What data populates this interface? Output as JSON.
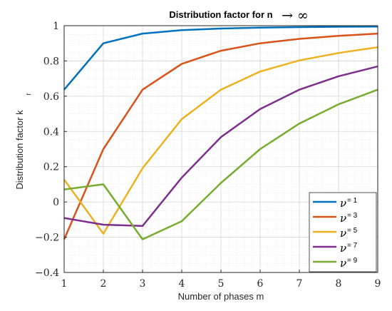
{
  "chart_data": {
    "type": "line",
    "title": "Distribution factor for n",
    "title_symbol": "→ ∞",
    "xlabel": "Number of phases m",
    "ylabel": "Distribution factor k",
    "ylabel_subscript": "r",
    "xlim": [
      1,
      9
    ],
    "ylim": [
      -0.4,
      1
    ],
    "xticks": [
      1,
      2,
      3,
      4,
      5,
      6,
      7,
      8,
      9
    ],
    "yticks": [
      -0.4,
      -0.2,
      0,
      0.2,
      0.4,
      0.6,
      0.8,
      1
    ],
    "ytick_labels": [
      "−0.4",
      "−0.2",
      "0",
      "0.2",
      "0.4",
      "0.6",
      "0.8",
      "1"
    ],
    "grid": true,
    "minor_grid": true,
    "legend_position": "bottom-right",
    "legend_symbol": "ν",
    "x": [
      1,
      2,
      3,
      4,
      5,
      6,
      7,
      8,
      9
    ],
    "series": [
      {
        "name": "= 1",
        "color": "#0072BD",
        "values": [
          0.637,
          0.9,
          0.955,
          0.975,
          0.984,
          0.989,
          0.992,
          0.994,
          0.995
        ]
      },
      {
        "name": "= 3",
        "color": "#D95319",
        "values": [
          -0.212,
          0.3,
          0.637,
          0.783,
          0.858,
          0.9,
          0.925,
          0.942,
          0.955
        ]
      },
      {
        "name": "= 5",
        "color": "#EDB120",
        "values": [
          0.127,
          -0.18,
          0.191,
          0.47,
          0.637,
          0.74,
          0.803,
          0.845,
          0.878
        ]
      },
      {
        "name": "= 7",
        "color": "#7E2F8E",
        "values": [
          -0.091,
          -0.129,
          -0.136,
          0.138,
          0.368,
          0.527,
          0.637,
          0.713,
          0.769
        ]
      },
      {
        "name": "= 9",
        "color": "#77AC30",
        "values": [
          0.071,
          0.1,
          -0.212,
          -0.109,
          0.108,
          0.3,
          0.445,
          0.554,
          0.637
        ]
      }
    ]
  }
}
